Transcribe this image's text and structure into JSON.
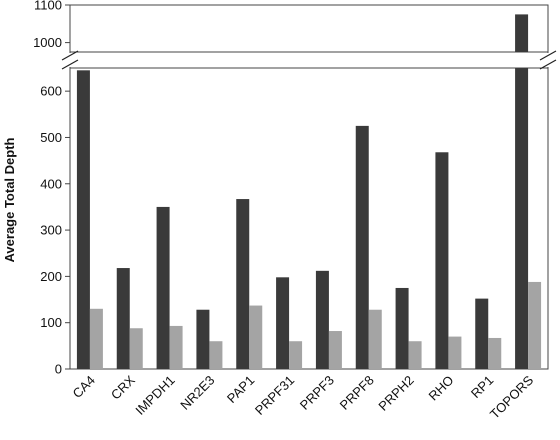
{
  "chart_data": {
    "type": "bar",
    "title": "",
    "xlabel": "",
    "ylabel": "Average Total Depth",
    "axis_break": {
      "lower_range": [
        0,
        650
      ],
      "upper_range": [
        975,
        1100
      ]
    },
    "lower_ticks": [
      "0",
      "100",
      "200",
      "300",
      "400",
      "500",
      "600"
    ],
    "upper_ticks": [
      "1000",
      "1100"
    ],
    "categories": [
      "CA4",
      "CRX",
      "IMPDH1",
      "NR2E3",
      "PAP1",
      "PRPF31",
      "PRPF3",
      "PRPF8",
      "PRPH2",
      "RHO",
      "RP1",
      "TOPORS"
    ],
    "series": [
      {
        "values": [
          645,
          218,
          350,
          128,
          367,
          198,
          212,
          525,
          175,
          468,
          152,
          1075
        ]
      },
      {
        "values": [
          130,
          88,
          93,
          60,
          137,
          60,
          82,
          128,
          60,
          70,
          67,
          188
        ]
      }
    ],
    "colors": [
      "#3a3a3a",
      "#a4a4a4"
    ],
    "grid": false,
    "legend": "none"
  }
}
